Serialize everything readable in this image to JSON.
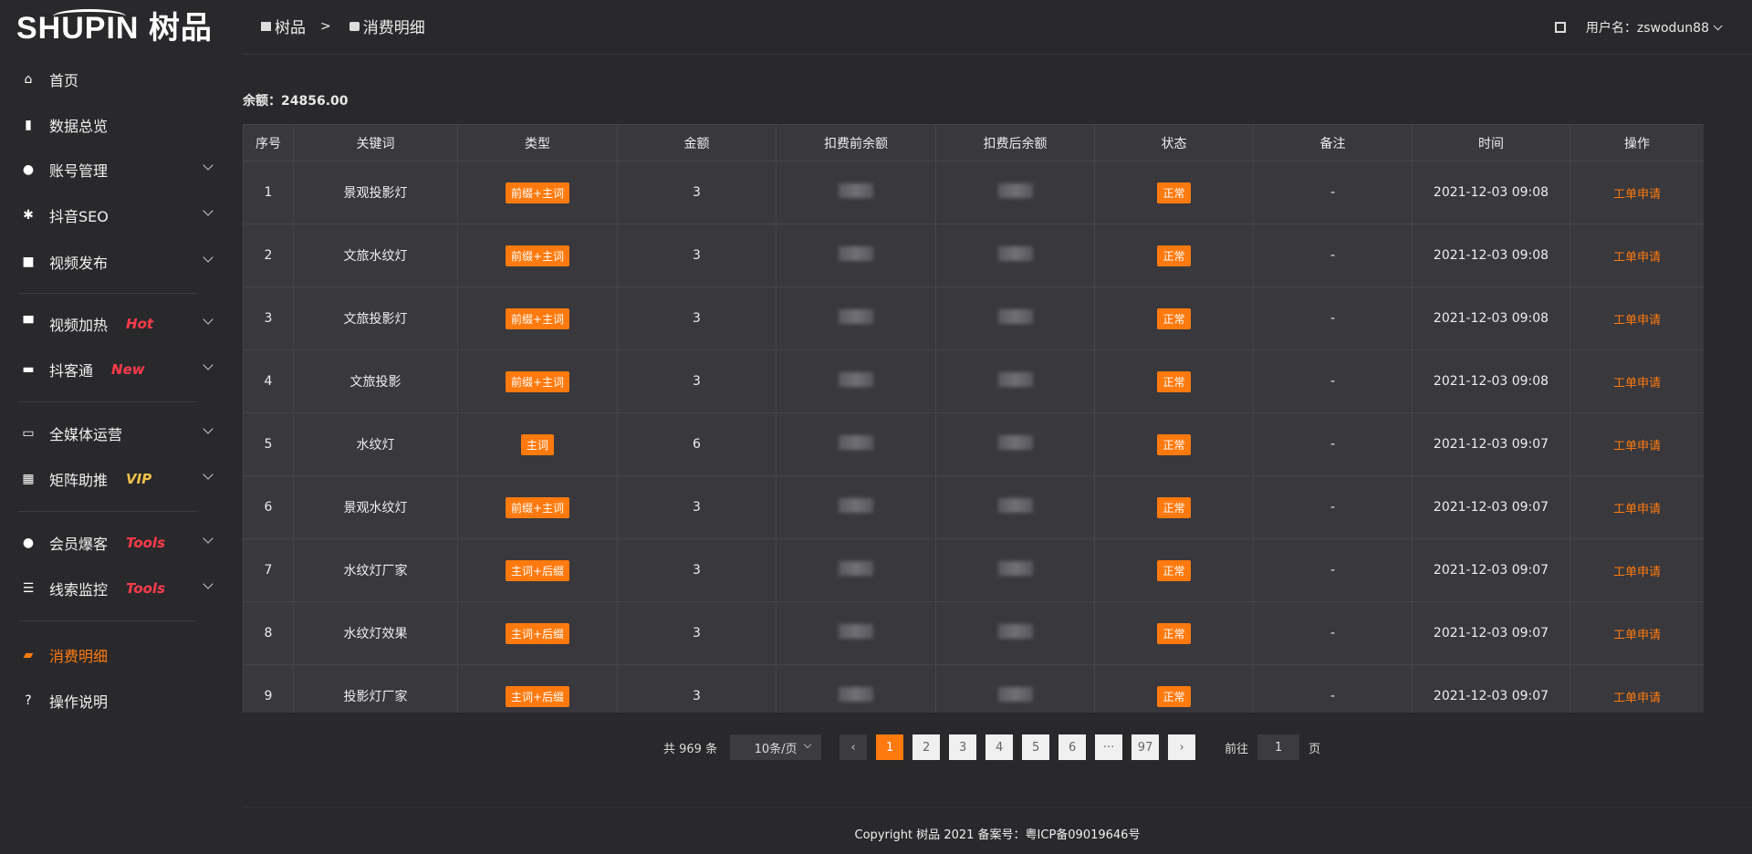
{
  "logo": {
    "text": "SHUPIN 树品"
  },
  "sidebar": {
    "items": [
      {
        "label": "首页",
        "icon": "home-icon",
        "tag": "",
        "chevron": false
      },
      {
        "label": "数据总览",
        "icon": "bar-chart-icon",
        "tag": "",
        "chevron": false
      },
      {
        "label": "账号管理",
        "icon": "user-icon",
        "tag": "",
        "chevron": true
      },
      {
        "label": "抖音SEO",
        "icon": "gear-icon",
        "tag": "",
        "chevron": true
      },
      {
        "label": "视频发布",
        "icon": "video-camera-icon",
        "tag": "",
        "chevron": true
      },
      {
        "label": "视频加热",
        "icon": "billboard-icon",
        "tag": "Hot",
        "tagColor": "#ff3b4a",
        "chevron": true
      },
      {
        "label": "抖客通",
        "icon": "chat-icon",
        "tag": "New",
        "tagColor": "#ff3b4a",
        "chevron": true
      },
      {
        "label": "全媒体运营",
        "icon": "monitor-icon",
        "tag": "",
        "chevron": true
      },
      {
        "label": "矩阵助推",
        "icon": "grid-icon",
        "tag": "VIP",
        "tagColor": "#f5c04a",
        "chevron": true
      },
      {
        "label": "会员爆客",
        "icon": "user-icon",
        "tag": "Tools",
        "tagColor": "#ff3b4a",
        "chevron": true
      },
      {
        "label": "线索监控",
        "icon": "sliders-icon",
        "tag": "Tools",
        "tagColor": "#ff3b4a",
        "chevron": true
      },
      {
        "label": "消费明细",
        "icon": "wallet-icon",
        "tag": "",
        "chevron": false,
        "active": true
      },
      {
        "label": "操作说明",
        "icon": "help-icon",
        "tag": "",
        "chevron": false
      }
    ]
  },
  "header": {
    "breadcrumb": [
      "树品",
      "消费明细"
    ],
    "separator": ">",
    "user_label": "用户名：zswodun88"
  },
  "balance": "余额：24856.00",
  "table": {
    "columns": [
      "序号",
      "关键词",
      "类型",
      "金额",
      "扣费前余额",
      "扣费后余额",
      "状态",
      "备注",
      "时间",
      "操作"
    ],
    "rows": [
      {
        "no": "1",
        "keyword": "景观投影灯",
        "type": "前缀+主词",
        "amount": "3",
        "status": "正常",
        "note": "-",
        "time": "2021-12-03 09:08",
        "action": "工单申请"
      },
      {
        "no": "2",
        "keyword": "文旅水纹灯",
        "type": "前缀+主词",
        "amount": "3",
        "status": "正常",
        "note": "-",
        "time": "2021-12-03 09:08",
        "action": "工单申请"
      },
      {
        "no": "3",
        "keyword": "文旅投影灯",
        "type": "前缀+主词",
        "amount": "3",
        "status": "正常",
        "note": "-",
        "time": "2021-12-03 09:08",
        "action": "工单申请"
      },
      {
        "no": "4",
        "keyword": "文旅投影",
        "type": "前缀+主词",
        "amount": "3",
        "status": "正常",
        "note": "-",
        "time": "2021-12-03 09:08",
        "action": "工单申请"
      },
      {
        "no": "5",
        "keyword": "水纹灯",
        "type": "主词",
        "amount": "6",
        "status": "正常",
        "note": "-",
        "time": "2021-12-03 09:07",
        "action": "工单申请"
      },
      {
        "no": "6",
        "keyword": "景观水纹灯",
        "type": "前缀+主词",
        "amount": "3",
        "status": "正常",
        "note": "-",
        "time": "2021-12-03 09:07",
        "action": "工单申请"
      },
      {
        "no": "7",
        "keyword": "水纹灯厂家",
        "type": "主词+后缀",
        "amount": "3",
        "status": "正常",
        "note": "-",
        "time": "2021-12-03 09:07",
        "action": "工单申请"
      },
      {
        "no": "8",
        "keyword": "水纹灯效果",
        "type": "主词+后缀",
        "amount": "3",
        "status": "正常",
        "note": "-",
        "time": "2021-12-03 09:07",
        "action": "工单申请"
      },
      {
        "no": "9",
        "keyword": "投影灯厂家",
        "type": "主词+后缀",
        "amount": "3",
        "status": "正常",
        "note": "-",
        "time": "2021-12-03 09:07",
        "action": "工单申请"
      }
    ]
  },
  "pagination": {
    "total": "共 969 条",
    "page_size": "10条/页",
    "prev": "‹",
    "next": "›",
    "pages": [
      "1",
      "2",
      "3",
      "4",
      "5",
      "6",
      "···",
      "97"
    ],
    "current": "1",
    "goto_label": "前往",
    "goto_value": "1",
    "goto_suffix": "页"
  },
  "footer": {
    "copyright": "Copyright 树品 2021 备案号：粤ICP备09019646号"
  },
  "colors": {
    "accent": "#ff7a0e",
    "background": "#29292c",
    "table": "#38383d"
  }
}
